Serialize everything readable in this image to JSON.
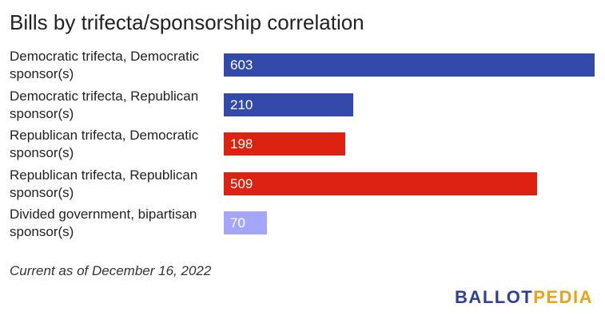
{
  "chart_data": {
    "type": "bar",
    "orientation": "horizontal",
    "title": "Bills by trifecta/sponsorship correlation",
    "categories": [
      "Democratic trifecta, Democratic sponsor(s)",
      "Democratic trifecta, Republican sponsor(s)",
      "Republican trifecta, Democratic sponsor(s)",
      "Republican trifecta, Republican sponsor(s)",
      "Divided government, bipartisan sponsor(s)"
    ],
    "values": [
      603,
      210,
      198,
      509,
      70
    ],
    "data_labels": [
      "603",
      "210",
      "198",
      "509",
      "70"
    ],
    "colors": [
      "#334aaa",
      "#334aaa",
      "#dd2212",
      "#dd2212",
      "#a3a6f9"
    ],
    "xlim": [
      0,
      603
    ],
    "grid": false,
    "legend": "none"
  },
  "footnote": "Current as of December 16, 2022",
  "logo": {
    "part1": "BALLOT",
    "part2": "PEDIA",
    "color1": "#2f3f95",
    "color2": "#e8a21c"
  }
}
